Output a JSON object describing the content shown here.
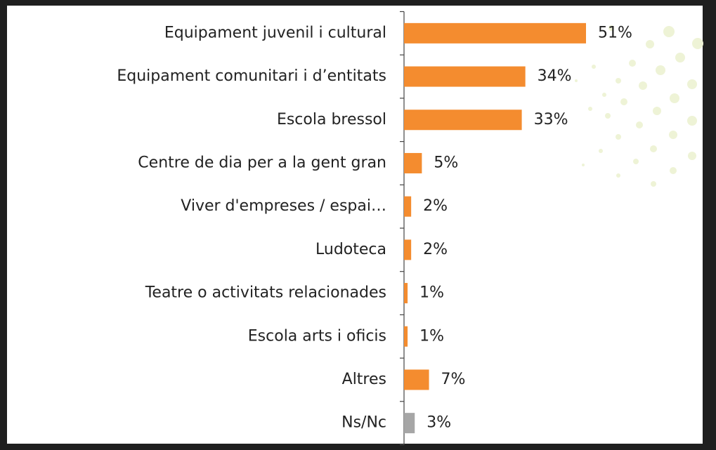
{
  "chart_data": {
    "type": "bar",
    "orientation": "horizontal",
    "categories": [
      "Equipament juvenil i cultural",
      "Equipament comunitari i d’entitats",
      "Escola bressol",
      "Centre de dia per a la gent gran",
      "Viver d'empreses / espai…",
      "Ludoteca",
      "Teatre o activitats relacionades",
      "Escola arts i oficis",
      "Altres",
      "Ns/Nc"
    ],
    "values": [
      51,
      34,
      33,
      5,
      2,
      2,
      1,
      1,
      7,
      3
    ],
    "value_labels": [
      "51%",
      "34%",
      "33%",
      "5%",
      "2%",
      "2%",
      "1%",
      "1%",
      "7%",
      "3%"
    ],
    "colors": [
      "#f48c2f",
      "#f48c2f",
      "#f48c2f",
      "#f48c2f",
      "#f48c2f",
      "#f48c2f",
      "#f48c2f",
      "#f48c2f",
      "#f48c2f",
      "#a6a6a6"
    ]
  }
}
